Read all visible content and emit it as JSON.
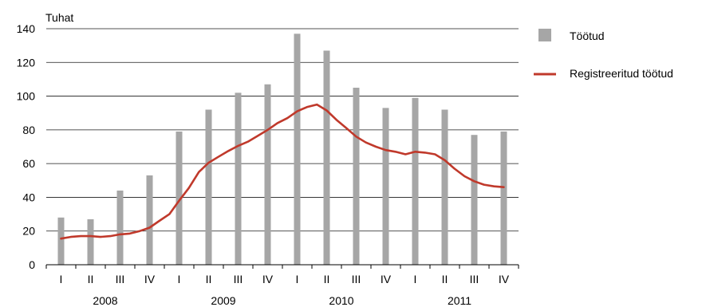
{
  "chart_data": {
    "type": "bar+line",
    "unit_label": "Tuhat",
    "ylim": [
      0,
      140
    ],
    "yticks": [
      0,
      20,
      40,
      60,
      80,
      100,
      120,
      140
    ],
    "grid": true,
    "legend_placement": "right",
    "quarters": [
      "I",
      "II",
      "III",
      "IV",
      "I",
      "II",
      "III",
      "IV",
      "I",
      "II",
      "III",
      "IV",
      "I",
      "II",
      "III",
      "IV"
    ],
    "years": [
      "2008",
      "2009",
      "2010",
      "2011"
    ],
    "series": [
      {
        "name": "Töötud",
        "type": "bar",
        "color": "#a6a6a6",
        "values": [
          28,
          27,
          44,
          53,
          79,
          92,
          102,
          107,
          137,
          127,
          105,
          93,
          99,
          92,
          77,
          79
        ]
      },
      {
        "name": "Registreeritud töötud",
        "type": "line",
        "color": "#c0392b",
        "points": [
          [
            0.0,
            15.5
          ],
          [
            0.33,
            16.5
          ],
          [
            0.67,
            17
          ],
          [
            1.0,
            17
          ],
          [
            1.33,
            16.5
          ],
          [
            1.67,
            17
          ],
          [
            2.0,
            18
          ],
          [
            2.33,
            18.5
          ],
          [
            2.67,
            20
          ],
          [
            3.0,
            22
          ],
          [
            3.33,
            26
          ],
          [
            3.67,
            30
          ],
          [
            4.0,
            38
          ],
          [
            4.33,
            45.5
          ],
          [
            4.67,
            55
          ],
          [
            5.0,
            60.5
          ],
          [
            5.33,
            64
          ],
          [
            5.67,
            67.5
          ],
          [
            6.0,
            70.5
          ],
          [
            6.33,
            73
          ],
          [
            6.67,
            76.5
          ],
          [
            7.0,
            80
          ],
          [
            7.33,
            84
          ],
          [
            7.67,
            87
          ],
          [
            8.0,
            91
          ],
          [
            8.33,
            93.5
          ],
          [
            8.67,
            95
          ],
          [
            9.0,
            91.5
          ],
          [
            9.33,
            86
          ],
          [
            9.67,
            81
          ],
          [
            10.0,
            76
          ],
          [
            10.33,
            72.5
          ],
          [
            10.67,
            70
          ],
          [
            11.0,
            68
          ],
          [
            11.33,
            67
          ],
          [
            11.67,
            65.5
          ],
          [
            12.0,
            67
          ],
          [
            12.33,
            66.5
          ],
          [
            12.67,
            65.5
          ],
          [
            13.0,
            62
          ],
          [
            13.33,
            57
          ],
          [
            13.67,
            52.5
          ],
          [
            14.0,
            49.5
          ],
          [
            14.33,
            47.5
          ],
          [
            14.67,
            46.5
          ],
          [
            15.0,
            46
          ]
        ]
      }
    ]
  }
}
